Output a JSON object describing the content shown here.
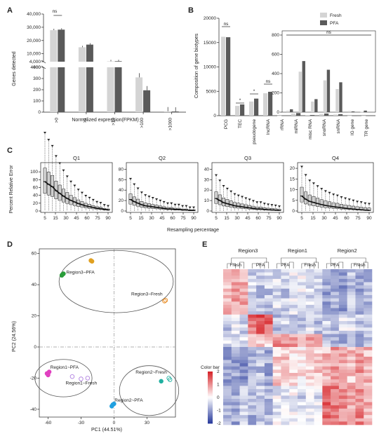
{
  "panel_labels": [
    "A",
    "B",
    "C",
    "D",
    "E"
  ],
  "colors": {
    "fresh": "#d4d4d4",
    "pfa": "#5a5a5a",
    "accent_blue": "#2c3e9e",
    "accent_red": "#d7262b"
  },
  "chart_data": [
    {
      "id": "A",
      "type": "bar",
      "xlabel": "Normalized expression(FPKM)",
      "ylabel": "Genes detected",
      "categories": [
        ">0",
        ">1",
        ">10",
        ">100",
        ">1000"
      ],
      "series": [
        {
          "name": "Fresh",
          "values": [
            27800,
            14900,
            4300,
            310,
            8
          ]
        },
        {
          "name": "PFA",
          "values": [
            28200,
            16900,
            4400,
            195,
            6
          ]
        }
      ],
      "y_ticks_top": [
        "40,000",
        "30,000",
        "20,000",
        "10,000",
        "4,000"
      ],
      "y_ticks_bottom": [
        "4000",
        "400",
        "300",
        "200",
        "100",
        "0"
      ],
      "broken_axis": true,
      "annotations": [
        "ns"
      ]
    },
    {
      "id": "B",
      "type": "bar",
      "ylabel": "Composition of gene biotypes",
      "legend": [
        "Fresh",
        "PFA"
      ],
      "legend_position": "top-right",
      "categories": [
        "PCG",
        "TEC",
        "pseudogene",
        "lncRNA",
        "rRNA",
        "miRNA",
        "misc RNA",
        "snoRNA",
        "snRNA",
        "IG gene",
        "TR gene"
      ],
      "series": [
        {
          "name": "Fresh",
          "values": [
            16200,
            2000,
            2900,
            4600,
            15,
            420,
            110,
            330,
            240,
            12,
            3
          ]
        },
        {
          "name": "PFA",
          "values": [
            16100,
            2300,
            3500,
            4900,
            30,
            530,
            135,
            440,
            310,
            8,
            16
          ]
        }
      ],
      "y_ticks": [
        "0",
        "5000",
        "10000",
        "15000",
        "20000"
      ],
      "inset_y_ticks": [
        "0",
        "200",
        "400",
        "600",
        "800"
      ],
      "annotations": [
        "ns",
        "*",
        "*",
        "ns",
        "ns"
      ]
    },
    {
      "id": "C",
      "type": "box",
      "ylabel": "Percent Relative Error",
      "xlabel": "Resampling percentage",
      "x_ticks": [
        "5",
        "15",
        "30",
        "45",
        "60",
        "75",
        "90"
      ],
      "panels": [
        {
          "title": "Q1",
          "y_ticks": [
            "0",
            "20",
            "40",
            "60",
            "80",
            "100"
          ],
          "ymax": 120,
          "medians": [
            75,
            68,
            62,
            52,
            45,
            38,
            32,
            27,
            23,
            19,
            16,
            13,
            11,
            9,
            7,
            6,
            4,
            3
          ]
        },
        {
          "title": "Q2",
          "y_ticks": [
            "0",
            "20",
            "40",
            "60",
            "80"
          ],
          "ymax": 90,
          "medians": [
            22,
            18,
            15,
            12,
            10,
            9,
            8,
            7,
            6,
            5,
            4,
            4,
            3,
            3,
            2,
            2,
            1,
            1
          ]
        },
        {
          "title": "Q3",
          "y_ticks": [
            "0",
            "10",
            "20",
            "30",
            "40"
          ],
          "ymax": 45,
          "medians": [
            12,
            10,
            8,
            7,
            6,
            5,
            4.5,
            4,
            3.5,
            3,
            2.5,
            2,
            2,
            1.5,
            1.2,
            1,
            0.8,
            0.5
          ]
        },
        {
          "title": "Q4",
          "y_ticks": [
            "0",
            "5",
            "10",
            "15",
            "20"
          ],
          "ymax": 22,
          "medians": [
            7,
            5.5,
            4.5,
            4,
            3.5,
            3,
            2.6,
            2.3,
            2,
            1.8,
            1.5,
            1.3,
            1.1,
            0.9,
            0.7,
            0.6,
            0.4,
            0.3
          ]
        }
      ]
    },
    {
      "id": "D",
      "type": "scatter",
      "xlabel": "PC1 (44.51%)",
      "ylabel": "PC2 (24.56%)",
      "x_ticks": [
        "-60",
        "-30",
        "0",
        "30"
      ],
      "y_ticks": [
        "60",
        "40",
        "20",
        "0",
        "-20",
        "-40"
      ],
      "xlim": [
        -68,
        56
      ],
      "ylim": [
        -45,
        63
      ],
      "groups": [
        {
          "name": "Region3~PFA",
          "color": "#2a9d3a",
          "filled": true,
          "points": [
            [
              -47,
              46.5
            ],
            [
              -46,
              47
            ],
            [
              -47.5,
              46
            ]
          ]
        },
        {
          "name": "",
          "color": "#e0a020",
          "filled": true,
          "points": [
            [
              -20,
              55
            ],
            [
              -21,
              55.5
            ]
          ]
        },
        {
          "name": "Region3~Fresh",
          "color": "#e88a20",
          "filled": false,
          "points": [
            [
              46,
              29.5
            ],
            [
              47,
              30
            ]
          ]
        },
        {
          "name": "Region1~PFA",
          "color": "#e040c0",
          "filled": true,
          "points": [
            [
              -59,
              -16
            ],
            [
              -61,
              -17
            ],
            [
              -60,
              -18
            ]
          ]
        },
        {
          "name": "Region1~Fresh",
          "color": "#b080e0",
          "filled": false,
          "points": [
            [
              -38,
              -19
            ],
            [
              -30,
              -20.5
            ],
            [
              -24,
              -20
            ]
          ]
        },
        {
          "name": "Region2~Fresh",
          "color": "#20b0a0",
          "filled": false,
          "points": [
            [
              50,
              -20
            ],
            [
              51,
              -21
            ]
          ]
        },
        {
          "name": "Region2~Fresh",
          "color": "#20b0a0",
          "filled": true,
          "points": [
            [
              43,
              -22
            ]
          ]
        },
        {
          "name": "Region2~PFA",
          "color": "#20a0e0",
          "filled": true,
          "points": [
            [
              -1,
              -37
            ],
            [
              -2,
              -38
            ],
            [
              0,
              -36.5
            ]
          ]
        }
      ]
    },
    {
      "id": "E",
      "type": "heatmap",
      "groups": [
        "Region3",
        "Region1",
        "Region2"
      ],
      "group_columns": [
        6,
        6,
        6
      ],
      "sub_labels": [
        "Fresh",
        "PFA",
        "PFA",
        "Fresh",
        "PFA",
        "Fresh"
      ],
      "color_bar_title": "Color bar",
      "color_bar_ticks": [
        "2",
        "1",
        "0",
        "-1",
        "-2"
      ],
      "colorscale": [
        "#2c3e9e",
        "#ffffff",
        "#d7262b"
      ],
      "n_rows": 48,
      "n_cols": 18,
      "row_blocks": [
        {
          "rows": 14,
          "pattern": [
            0.6,
            0.8,
            0.7,
            -0.4,
            -0.6,
            -0.5,
            -0.3,
            -0.5,
            -0.2,
            -0.1,
            -0.3,
            -0.4,
            -0.8,
            -0.7,
            -0.9,
            -0.6,
            -0.8,
            -0.7
          ]
        },
        {
          "rows": 6,
          "pattern": [
            -0.5,
            -0.3,
            -0.4,
            1.2,
            1.5,
            1.3,
            -0.6,
            -0.4,
            -0.5,
            -0.7,
            -0.3,
            -0.6,
            -0.4,
            -0.5,
            -0.2,
            -0.3,
            -0.5,
            -0.4
          ]
        },
        {
          "rows": 4,
          "pattern": [
            -0.2,
            -0.4,
            -0.3,
            0.3,
            0.5,
            0.4,
            0.9,
            1.0,
            0.8,
            0.7,
            1.0,
            0.9,
            -0.6,
            -0.8,
            -0.7,
            -0.5,
            -0.9,
            -0.6
          ]
        },
        {
          "rows": 12,
          "pattern": [
            -0.9,
            -0.8,
            -1.0,
            -0.7,
            -0.6,
            -0.8,
            0.4,
            0.5,
            0.3,
            0.2,
            0.4,
            0.5,
            0.6,
            0.8,
            0.7,
            0.5,
            0.9,
            0.6
          ]
        },
        {
          "rows": 12,
          "pattern": [
            -0.6,
            -0.8,
            -0.5,
            -0.7,
            -0.4,
            -0.6,
            -0.2,
            -0.3,
            -0.1,
            -0.4,
            -0.2,
            -0.3,
            1.3,
            1.1,
            0.9,
            0.8,
            1.0,
            0.7
          ]
        }
      ]
    }
  ]
}
